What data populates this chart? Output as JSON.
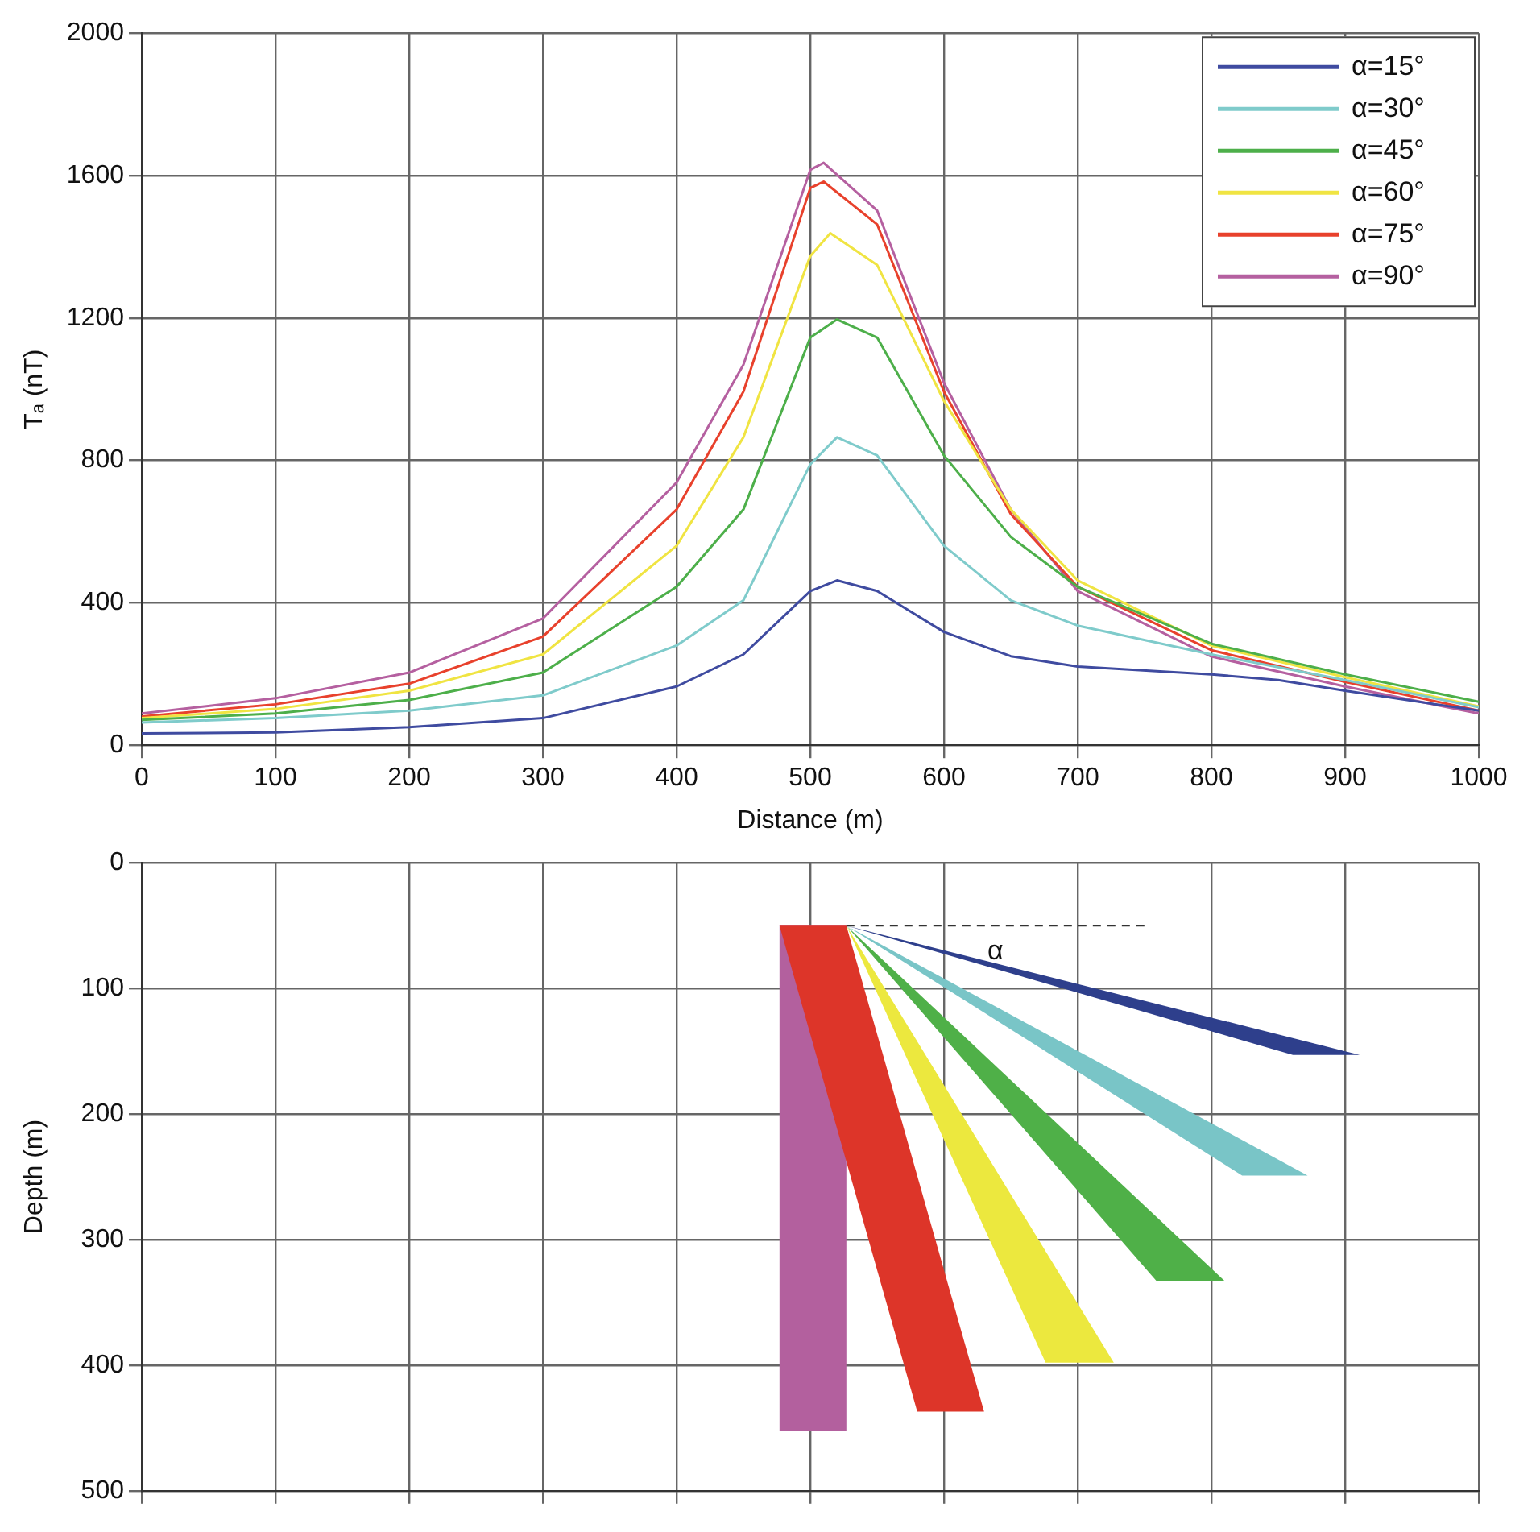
{
  "chart_data": [
    {
      "type": "line",
      "xlabel": "Distance (m)",
      "ylabel": "Tₐ (nT)",
      "xlim": [
        0,
        1000
      ],
      "xticks": [
        0,
        100,
        200,
        300,
        400,
        500,
        600,
        700,
        800,
        900,
        1000
      ],
      "ylim": [
        0,
        2000
      ],
      "yticks": [
        0,
        400,
        800,
        1200,
        1600,
        2000
      ],
      "grid": true,
      "legend": "top right",
      "marker": "none",
      "series": [
        {
          "name": "α=15°",
          "color": "#3f4ba0",
          "x": [
            0,
            100,
            200,
            300,
            400,
            450,
            500,
            520,
            550,
            600,
            650,
            700,
            800,
            850,
            900,
            1000
          ],
          "values": [
            33,
            36,
            51,
            76,
            165,
            255,
            433,
            463,
            433,
            318,
            250,
            221,
            199,
            183,
            153,
            97
          ]
        },
        {
          "name": "α=30°",
          "color": "#7fcbcb",
          "x": [
            0,
            100,
            200,
            300,
            400,
            450,
            500,
            520,
            550,
            600,
            650,
            700,
            800,
            900,
            1000
          ],
          "values": [
            64,
            76,
            97,
            140,
            280,
            407,
            789,
            865,
            814,
            560,
            407,
            336,
            255,
            183,
            107
          ]
        },
        {
          "name": "α=45°",
          "color": "#4daf4a",
          "x": [
            0,
            100,
            200,
            300,
            400,
            450,
            500,
            520,
            550,
            600,
            650,
            700,
            800,
            900,
            1000
          ],
          "values": [
            71,
            89,
            127,
            204,
            445,
            662,
            1145,
            1196,
            1145,
            814,
            585,
            445,
            285,
            199,
            122
          ]
        },
        {
          "name": "α=60°",
          "color": "#f0e442",
          "x": [
            0,
            100,
            200,
            300,
            400,
            450,
            500,
            515,
            550,
            600,
            650,
            700,
            800,
            900,
            1000
          ],
          "values": [
            76,
            102,
            153,
            255,
            560,
            865,
            1374,
            1438,
            1349,
            967,
            662,
            463,
            280,
            191,
            109
          ]
        },
        {
          "name": "α=75°",
          "color": "#e8412c",
          "x": [
            0,
            100,
            200,
            300,
            400,
            450,
            500,
            510,
            550,
            600,
            650,
            700,
            800,
            900,
            1000
          ],
          "values": [
            81,
            115,
            173,
            305,
            662,
            993,
            1565,
            1583,
            1463,
            993,
            649,
            445,
            267,
            178,
            97
          ]
        },
        {
          "name": "α=90°",
          "color": "#b560a0",
          "x": [
            0,
            100,
            200,
            300,
            400,
            450,
            500,
            510,
            550,
            600,
            650,
            700,
            800,
            900,
            1000
          ],
          "values": [
            89,
            132,
            204,
            356,
            738,
            1069,
            1616,
            1636,
            1502,
            1018,
            662,
            433,
            249,
            165,
            89
          ]
        }
      ]
    },
    {
      "type": "area",
      "ylabel": "Depth (m)",
      "xlim": [
        0,
        1000
      ],
      "xticks": [
        0,
        100,
        200,
        300,
        400,
        500,
        600,
        700,
        800,
        900,
        1000
      ],
      "ylim": [
        500,
        0
      ],
      "yticks": [
        0,
        100,
        200,
        300,
        400,
        500
      ],
      "tick_labels": "y",
      "grid": true,
      "legend": false,
      "annotations": [
        "α"
      ],
      "series": [
        {
          "type": "line",
          "line_style": "dashed",
          "color": "#333333",
          "x": [
            527,
            750
          ],
          "values": [
            50,
            50
          ]
        },
        {
          "color": "#2e3f8c",
          "x": [
            527,
            911,
            861,
            527
          ],
          "values": [
            50,
            153,
            153,
            50
          ]
        },
        {
          "color": "#79c5c7",
          "x": [
            527,
            872,
            823,
            527
          ],
          "values": [
            50,
            249,
            249,
            50
          ]
        },
        {
          "color": "#4fb048",
          "x": [
            527,
            810,
            759,
            527
          ],
          "values": [
            50,
            333,
            333,
            50
          ]
        },
        {
          "color": "#ece83e",
          "x": [
            527,
            727,
            676,
            527
          ],
          "values": [
            50,
            398,
            398,
            50
          ]
        },
        {
          "color": "#dd3529",
          "x": [
            477,
            527,
            630,
            580,
            477
          ],
          "values": [
            50,
            50,
            437,
            437,
            50
          ]
        },
        {
          "color": "#b3609e",
          "x": [
            477,
            527,
            527,
            477,
            477
          ],
          "values": [
            50,
            50,
            452,
            452,
            50
          ]
        }
      ]
    }
  ]
}
